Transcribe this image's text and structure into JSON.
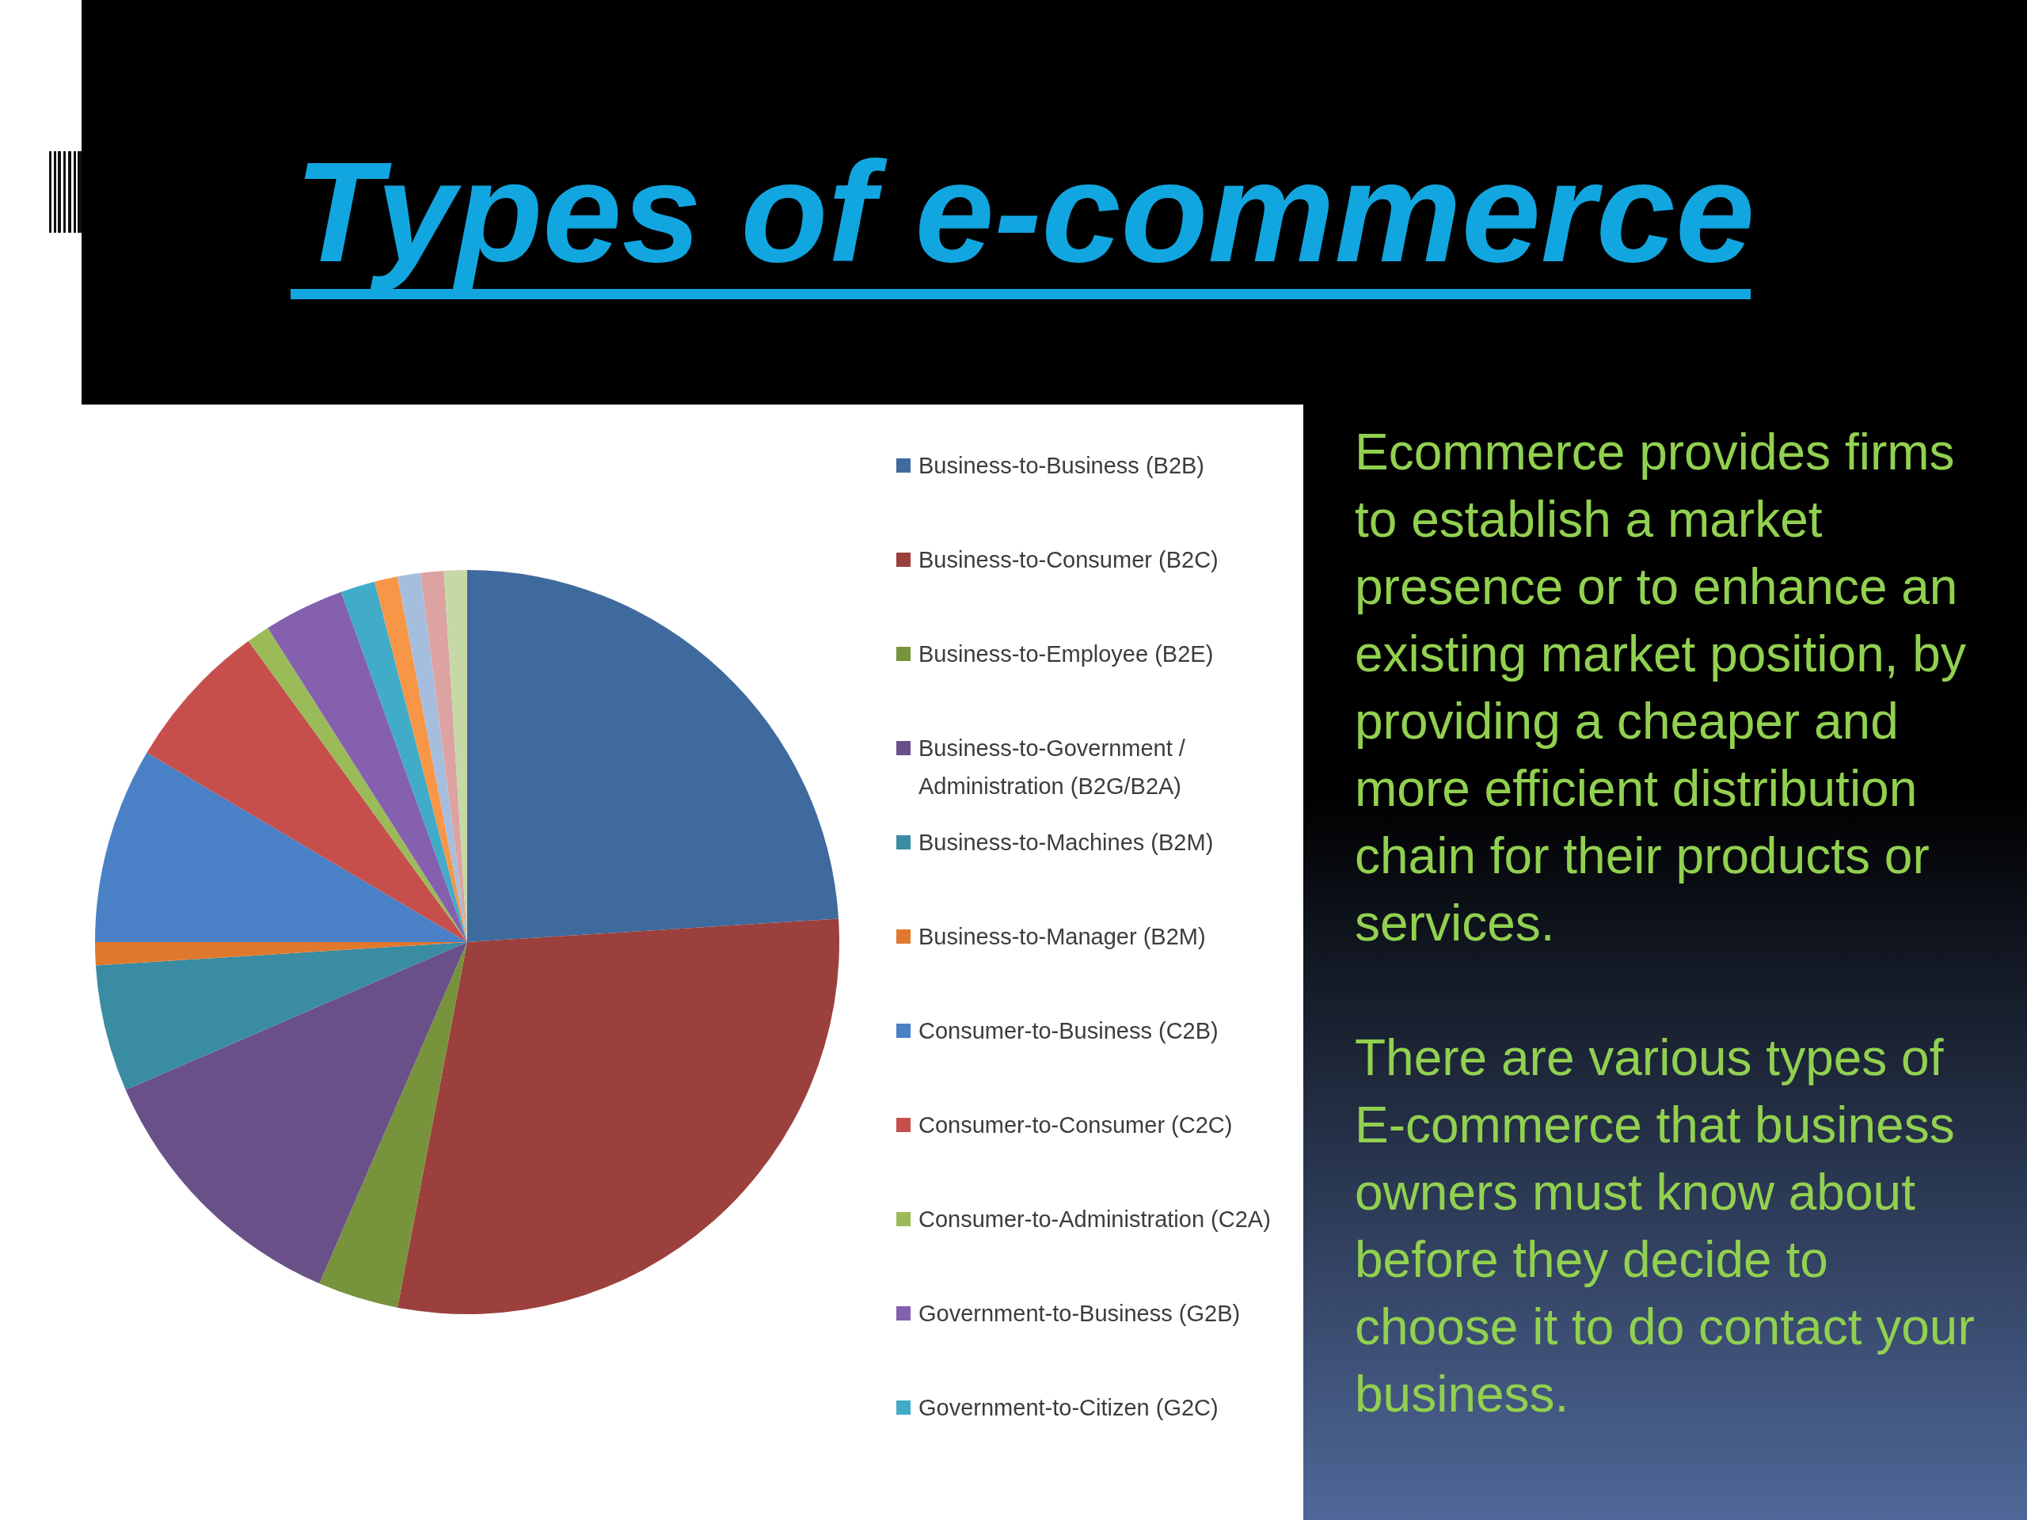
{
  "chart_data": {
    "type": "pie",
    "title": "Types of e-commerce",
    "categories": [
      "Business-to-Business (B2B)",
      "Business-to-Consumer (B2C)",
      "Business-to-Employee (B2E)",
      "Business-to-Government / Administration (B2G/B2A)",
      "Business-to-Machines (B2M)",
      "Business-to-Manager (B2M)",
      "Consumer-to-Business (C2B)",
      "Consumer-to-Consumer (C2C)",
      "Consumer-to-Administration (C2A)",
      "Government-to-Business (G2B)",
      "Government-to-Citizen (G2C)",
      null,
      null,
      null,
      null
    ],
    "values": [
      24,
      29,
      3.5,
      12,
      5.5,
      1,
      8.5,
      6.5,
      1,
      3.5,
      1.5,
      1,
      1,
      1,
      1
    ],
    "colors": [
      "#3f6a9e",
      "#9b403d",
      "#77933c",
      "#6a5089",
      "#3a8ca3",
      "#e0782d",
      "#4a80c6",
      "#c64f4c",
      "#9bbb59",
      "#8560ae",
      "#40acc8",
      "#f79646",
      "#a6bedd",
      "#dca3a2",
      "#c5d8a6"
    ],
    "legend": "right",
    "annotations": [
      "Ecommerce provides firms to establish a market presence or to enhance an existing market position, by providing a cheaper and more efficient distribution chain for their products or services.",
      "There are various types of E-commerce that business owners must know about before they decide to choose it to do contact your business."
    ]
  }
}
